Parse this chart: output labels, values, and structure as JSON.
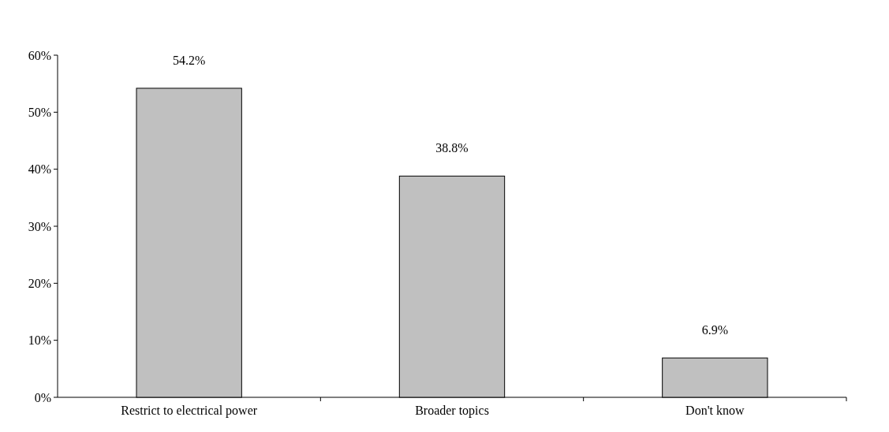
{
  "chart_data": {
    "type": "bar",
    "categories": [
      "Restrict to electrical power",
      "Broader topics",
      "Don't know"
    ],
    "values": [
      54.2,
      38.8,
      6.9
    ],
    "color": "#c0c0c0",
    "value_labels": [
      "54.2%",
      "38.8%",
      "6.9%"
    ],
    "ylim": [
      0,
      60
    ],
    "yticks": [
      {
        "value": 0,
        "label": "0%"
      },
      {
        "value": 10,
        "label": "10%"
      },
      {
        "value": 20,
        "label": "20%"
      },
      {
        "value": 30,
        "label": "30%"
      },
      {
        "value": 40,
        "label": "40%"
      },
      {
        "value": 50,
        "label": "50%"
      },
      {
        "value": 60,
        "label": "60%"
      }
    ],
    "grid": false
  }
}
